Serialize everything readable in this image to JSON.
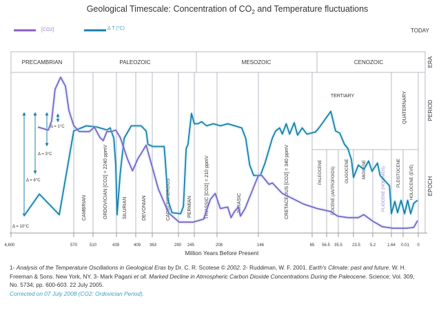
{
  "title": {
    "pre": "Geological Timescale: Concentration of CO",
    "sub": "2",
    "post": " and Temperature fluctuations"
  },
  "legend": {
    "co2": "[CO2]",
    "temp": "Δ T (°C)"
  },
  "today": "TODAY",
  "row_labels": {
    "era": "ERA",
    "period": "PERIOD",
    "epoch": "EPOCH"
  },
  "eras": [
    "PRECAMBRIAN",
    "PALEOZOIC",
    "MESOZOIC",
    "CENOZOIC"
  ],
  "periods": {
    "cambrian": "CAMBRIAN",
    "ordovician": "ORDOVICIAN [CO2] = 2240 ppmV",
    "silurian": "SILURIAN",
    "devonian": "DEVONIAN",
    "carboniferous": "CARBONIFEROUS",
    "permian": "PERMIAN",
    "triassic": "TRIASSIC [CO2] = 210 ppmV",
    "jurassic": "JURASIC",
    "cretaceous": "CRETACEOUS [CO2] = 340 ppmV",
    "tertiary": "TERTIARY",
    "quaternary": "QUATERNARY"
  },
  "epochs": {
    "paleocene": "PALEOCENE",
    "eocene": "EOCENE (ANTROPOIDS)",
    "oligocene": "OLIGOCENE",
    "miocene": "MIOCENE",
    "pliocene": "PLIOCENE (HOMINIDS)",
    "pleistocene": "PLEISTOCENE",
    "holocene": "HOLOCENE (EVE)"
  },
  "deltas": [
    "Δ = 1°C",
    "Δ = 3°C",
    "Δ = 6°C",
    "Δ = 10°C"
  ],
  "colors": {
    "co2": "#8a5cc8",
    "temp": "#1b7fa8",
    "glow": "#9fdcf0",
    "grid": "#b8b8c4",
    "correction": "#3aa0c0"
  },
  "chart_data": {
    "type": "line",
    "title": "Geological Timescale: Concentration of CO2 and Temperature fluctuations",
    "xlabel": "Million Years Before Present",
    "x_scale": "non-linear (segmented by geological boundaries)",
    "x_ticks": [
      "4,600",
      "570",
      "510",
      "439",
      "409",
      "363",
      "290",
      "245",
      "208",
      "146",
      "65",
      "56.5",
      "35.5",
      "23.5",
      "5.2",
      "1.64",
      "0.01",
      "0"
    ],
    "grid": "vertical lines at period/epoch boundaries",
    "legend": "top-left",
    "series": [
      {
        "name": "[CO2]",
        "unit": "relative level (0 = minimum, 1 = maximum shown)",
        "color": "#8a5cc8",
        "points": [
          [
            2870,
            0.67
          ],
          [
            2210,
            0.65
          ],
          [
            1990,
            0.71
          ],
          [
            1770,
            0.92
          ],
          [
            1410,
            1.0
          ],
          [
            1100,
            0.94
          ],
          [
            880,
            0.78
          ],
          [
            570,
            0.68
          ],
          [
            553,
            0.64
          ],
          [
            521,
            0.64
          ],
          [
            506,
            0.67
          ],
          [
            489,
            0.6
          ],
          [
            479,
            0.58
          ],
          [
            468,
            0.64
          ],
          [
            454,
            0.64
          ],
          [
            441,
            0.65
          ],
          [
            433,
            0.6
          ],
          [
            422,
            0.46
          ],
          [
            414,
            0.38
          ],
          [
            403,
            0.46
          ],
          [
            380,
            0.55
          ],
          [
            365,
            0.42
          ],
          [
            346,
            0.26
          ],
          [
            317,
            0.1
          ],
          [
            288,
            0.04
          ],
          [
            249,
            0.04
          ],
          [
            230,
            0.06
          ],
          [
            219,
            0.19
          ],
          [
            211,
            0.23
          ],
          [
            203,
            0.13
          ],
          [
            192,
            0.14
          ],
          [
            187,
            0.07
          ],
          [
            182,
            0.11
          ],
          [
            176,
            0.14
          ],
          [
            173,
            0.08
          ],
          [
            166,
            0.13
          ],
          [
            156,
            0.24
          ],
          [
            146,
            0.35
          ],
          [
            141,
            0.35
          ],
          [
            130,
            0.29
          ],
          [
            125,
            0.3
          ],
          [
            110,
            0.23
          ],
          [
            78,
            0.16
          ],
          [
            62,
            0.13
          ],
          [
            49,
            0.11
          ],
          [
            36.7,
            0.08
          ],
          [
            27.9,
            0.07
          ],
          [
            18.9,
            0.07
          ],
          [
            13.7,
            0.09
          ],
          [
            5.9,
            0.05
          ],
          [
            3.4,
            0.01
          ],
          [
            1.45,
            0.0
          ],
          [
            0.008,
            0.0
          ],
          [
            0.003,
            0.005
          ],
          [
            0.0005,
            0.05
          ]
        ]
      },
      {
        "name": "Δ T (°C)",
        "unit": "°C relative to warm level",
        "color": "#1b7fa8",
        "points": [
          [
            3760,
            -10
          ],
          [
            2780,
            -7.9
          ],
          [
            1500,
            -9.9
          ],
          [
            570,
            -1.8
          ],
          [
            531,
            -1.3
          ],
          [
            500,
            -1.4
          ],
          [
            468,
            -1.7
          ],
          [
            458,
            -1.5
          ],
          [
            447,
            -2.5
          ],
          [
            441,
            -5.1
          ],
          [
            438,
            -9.9
          ],
          [
            433,
            -5.8
          ],
          [
            427,
            -2.5
          ],
          [
            416,
            -1.3
          ],
          [
            394,
            -1.3
          ],
          [
            380,
            -1.8
          ],
          [
            375,
            -3.1
          ],
          [
            361,
            -3.3
          ],
          [
            330,
            -3.3
          ],
          [
            327,
            -4.5
          ],
          [
            319,
            -8.5
          ],
          [
            308,
            -9.7
          ],
          [
            284,
            -9.8
          ],
          [
            276,
            -9.1
          ],
          [
            268,
            -3.5
          ],
          [
            263,
            -3.1
          ],
          [
            253,
            -0.1
          ],
          [
            245,
            -1.1
          ],
          [
            239,
            -1.1
          ],
          [
            233,
            -0.9
          ],
          [
            225,
            -1.3
          ],
          [
            214,
            -1.1
          ],
          [
            203,
            -1.3
          ],
          [
            192,
            -1.1
          ],
          [
            171,
            -1.5
          ],
          [
            165,
            -2.5
          ],
          [
            159,
            -5.1
          ],
          [
            153,
            -6.1
          ],
          [
            143,
            -6.1
          ],
          [
            136,
            -4.9
          ],
          [
            125,
            -2.5
          ],
          [
            120,
            -1.8
          ],
          [
            114,
            -1.5
          ],
          [
            110,
            -2.1
          ],
          [
            104,
            -1.1
          ],
          [
            99,
            -2.1
          ],
          [
            92,
            -1.0
          ],
          [
            87,
            -2.2
          ],
          [
            80,
            -1.5
          ],
          [
            73,
            -2.1
          ],
          [
            63,
            -1.9
          ],
          [
            61,
            -1.5
          ],
          [
            49,
            0.1
          ],
          [
            40.5,
            -1.8
          ],
          [
            34.4,
            -2.0
          ],
          [
            30.6,
            -3.1
          ],
          [
            27.9,
            -3.5
          ],
          [
            25.1,
            -4.6
          ],
          [
            23.5,
            -6.3
          ],
          [
            18.9,
            -5.1
          ],
          [
            13.7,
            -5.5
          ],
          [
            9.1,
            -4.7
          ],
          [
            5.9,
            -5.7
          ],
          [
            4.3,
            -4.9
          ],
          [
            3.8,
            -6.1
          ],
          [
            2.0,
            -7.1
          ],
          [
            1.64,
            -9.8
          ],
          [
            1.16,
            -8.6
          ],
          [
            0.78,
            -9.7
          ],
          [
            0.3,
            -8.5
          ],
          [
            0.009,
            -9.8
          ],
          [
            0.007,
            -8.5
          ],
          [
            0.005,
            -9.8
          ],
          [
            0.003,
            -8.8
          ],
          [
            0.0005,
            -8.5
          ]
        ]
      }
    ]
  },
  "references": {
    "r1_num": "1- ",
    "r1_title": "Analysis of the Temperature Oscillations in Geological Eras",
    "r1_rest": " by Dr. C. R. Scotese © ",
    "r1_year": "2002.",
    "r2": " 2- Ruddiman, W. F. 2001. ",
    "r2_title": "Earth's Climate: past and future",
    "r2_rest": ". W. H. Freeman & Sons. New York, NY. 3- Mark Pagani ",
    "r3_etal": "et oll. Marked Decline in Atmospheric Carbon Dioxide Concentrations During the Paleocene",
    "r3_rest": ". Science; Vol. 309, No. 5734; pp. 600-603. 22 July 2005.",
    "correction": "Corrected on 07 July 2008 (CO2: Ordovician Period)."
  }
}
